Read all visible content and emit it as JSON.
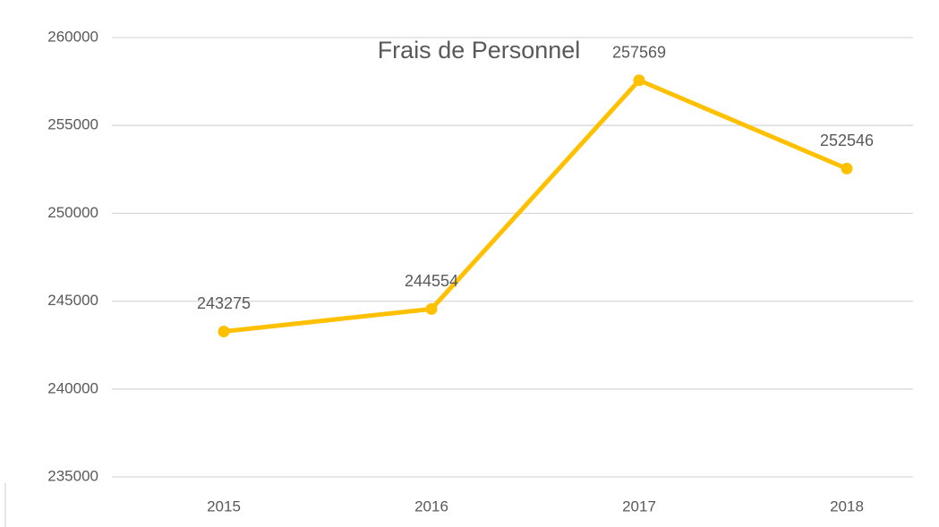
{
  "chart_data": {
    "type": "line",
    "title": "Frais de Personnel",
    "categories": [
      "2015",
      "2016",
      "2017",
      "2018"
    ],
    "series": [
      {
        "name": "Frais de Personnel",
        "color": "#ffc000",
        "values": [
          243275,
          244554,
          257569,
          252546
        ]
      }
    ],
    "ylim": [
      235000,
      260000
    ],
    "yticks": [
      235000,
      240000,
      245000,
      250000,
      255000,
      260000
    ],
    "grid": true
  }
}
